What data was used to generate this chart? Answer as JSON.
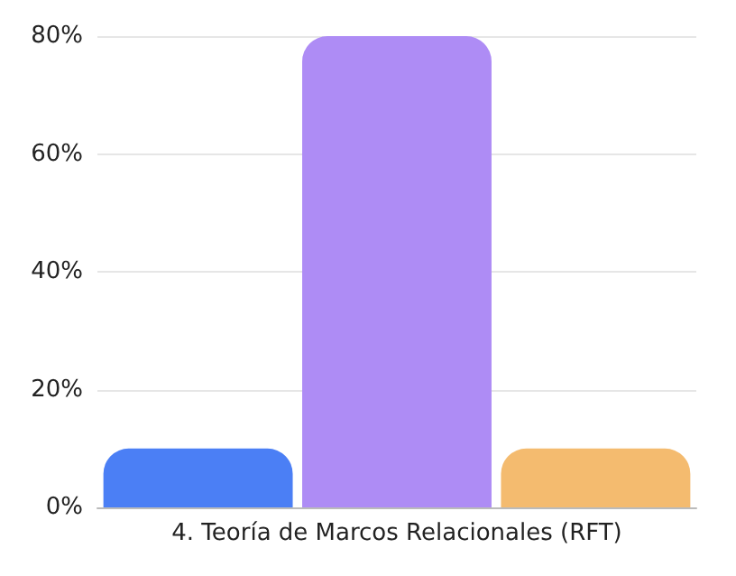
{
  "chart_data": {
    "type": "bar",
    "categories": [
      "4. Teoría de Marcos Relacionales (RFT)"
    ],
    "series": [
      {
        "color": "#4b7ff5",
        "values": [
          10
        ]
      },
      {
        "color": "#ae8cf5",
        "values": [
          80
        ]
      },
      {
        "color": "#f4bb6f",
        "values": [
          10
        ]
      }
    ],
    "ylim": [
      0,
      80
    ],
    "yticks": [
      {
        "value": 0,
        "label": "0%"
      },
      {
        "value": 20,
        "label": "20%"
      },
      {
        "value": 40,
        "label": "40%"
      },
      {
        "value": 60,
        "label": "60%"
      },
      {
        "value": 80,
        "label": "80%"
      }
    ],
    "grid": "y"
  }
}
